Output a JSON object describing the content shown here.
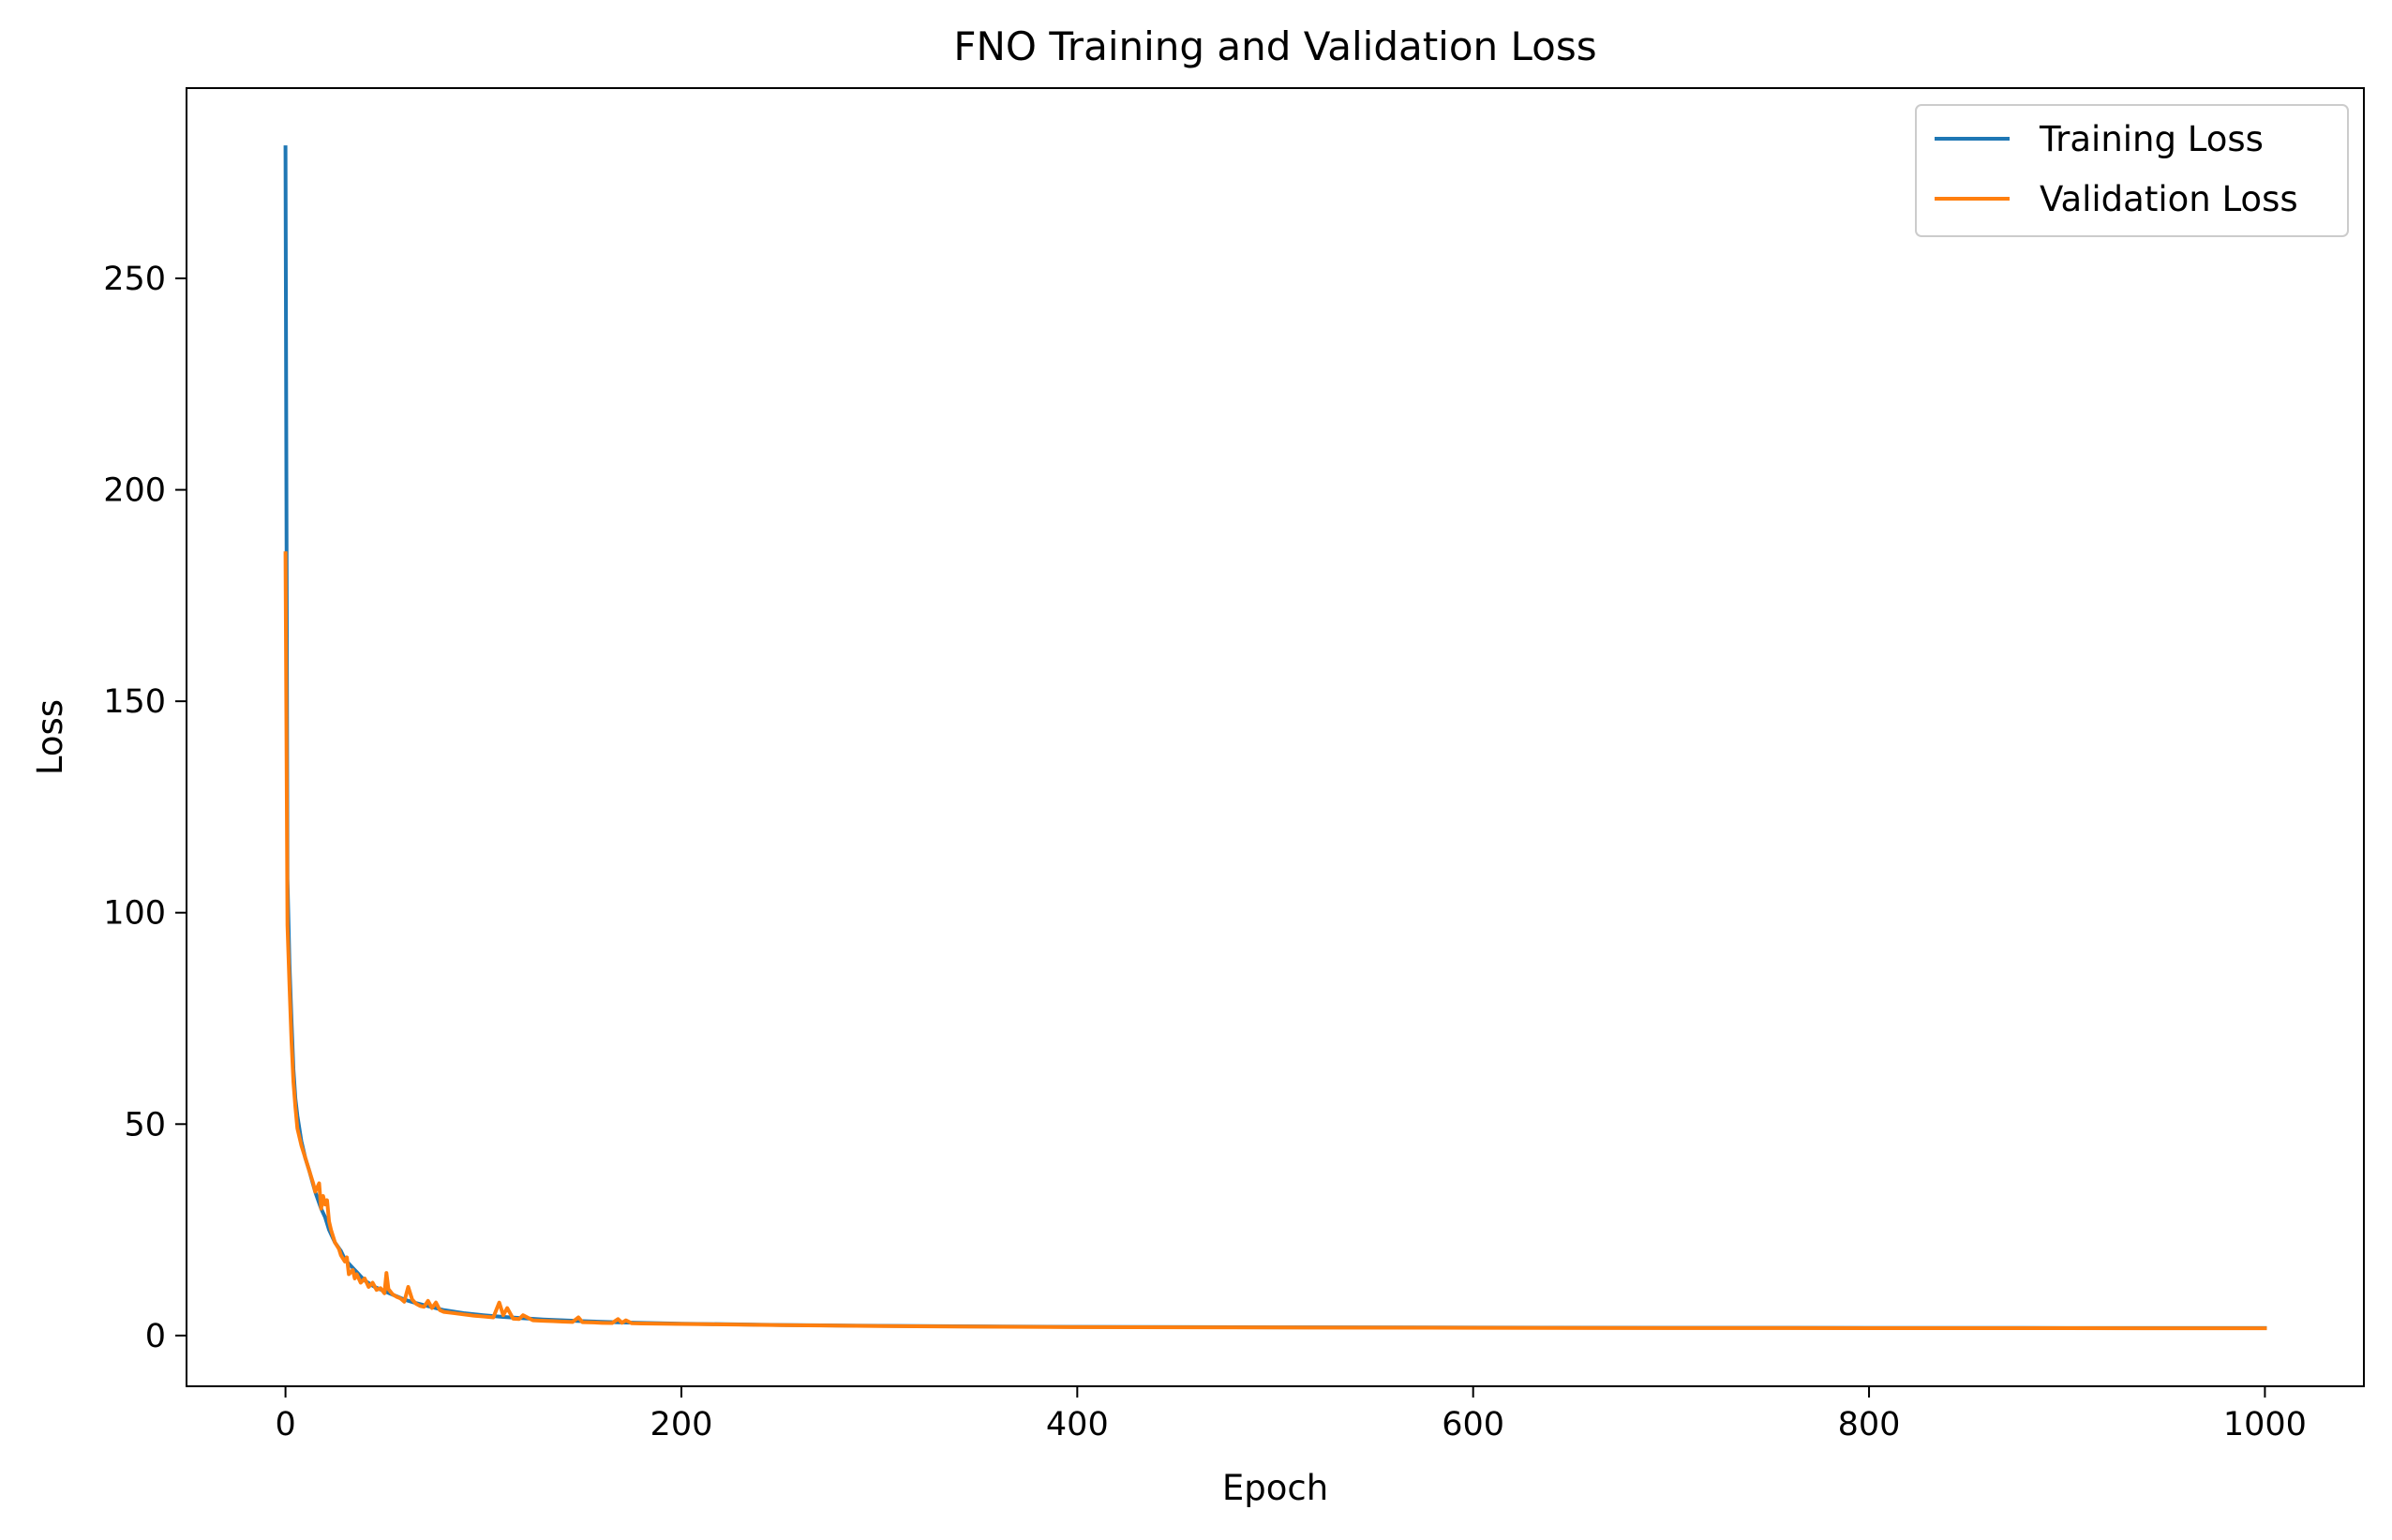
{
  "chart_data": {
    "type": "line",
    "title": "FNO Training and Validation Loss",
    "xlabel": "Epoch",
    "ylabel": "Loss",
    "xlim": [
      -50,
      1050
    ],
    "ylim": [
      -12,
      295
    ],
    "xticks": [
      0,
      200,
      400,
      600,
      800,
      1000
    ],
    "yticks": [
      0,
      50,
      100,
      150,
      200,
      250
    ],
    "xtick_labels": [
      "0",
      "200",
      "400",
      "600",
      "800",
      "1000"
    ],
    "ytick_labels": [
      "0",
      "50",
      "100",
      "150",
      "200",
      "250"
    ],
    "grid": false,
    "legend_position": "upper right",
    "series": [
      {
        "name": "Training Loss",
        "color": "#1f77b4",
        "x": [
          0,
          1,
          2,
          3,
          4,
          5,
          6,
          8,
          10,
          12,
          15,
          18,
          20,
          22,
          25,
          28,
          30,
          33,
          35,
          38,
          40,
          45,
          50,
          55,
          60,
          65,
          70,
          75,
          80,
          90,
          100,
          110,
          120,
          130,
          140,
          150,
          160,
          170,
          180,
          200,
          250,
          300,
          350,
          400,
          500,
          600,
          700,
          800,
          900,
          1000
        ],
        "y": [
          281,
          108,
          88,
          75,
          63,
          56,
          52,
          46,
          42,
          39,
          34,
          30,
          28,
          25,
          22,
          20,
          18,
          16.5,
          15.5,
          14,
          13,
          11.5,
          10.5,
          9.5,
          8.5,
          7.8,
          7.2,
          6.6,
          6.0,
          5.3,
          4.8,
          4.4,
          4.1,
          3.8,
          3.6,
          3.4,
          3.25,
          3.1,
          3.0,
          2.8,
          2.5,
          2.3,
          2.15,
          2.05,
          1.95,
          1.88,
          1.83,
          1.8,
          1.78,
          1.76
        ]
      },
      {
        "name": "Validation Loss",
        "color": "#ff7f0e",
        "x": [
          0,
          1,
          2,
          3,
          4,
          5,
          6,
          8,
          10,
          12,
          14,
          15,
          17,
          18,
          19,
          20,
          21,
          22,
          23,
          25,
          27,
          28,
          30,
          31,
          32,
          34,
          35,
          36,
          38,
          40,
          42,
          44,
          46,
          48,
          50,
          51,
          52,
          54,
          56,
          58,
          60,
          62,
          64,
          66,
          68,
          70,
          72,
          74,
          76,
          78,
          80,
          85,
          90,
          95,
          100,
          105,
          108,
          110,
          112,
          115,
          118,
          120,
          125,
          130,
          135,
          140,
          145,
          148,
          150,
          155,
          160,
          165,
          168,
          170,
          172,
          175,
          180,
          200,
          250,
          300,
          350,
          400,
          500,
          600,
          700,
          800,
          900,
          1000
        ],
        "y": [
          185,
          97,
          83,
          70,
          60,
          54,
          49,
          45,
          42,
          39,
          36,
          34,
          36,
          30,
          33,
          31,
          32,
          27,
          25,
          22,
          20.5,
          19,
          17.5,
          18.5,
          14.5,
          15.5,
          13.5,
          14.5,
          12.5,
          13.5,
          11.5,
          12.5,
          10.8,
          11.2,
          10.0,
          14.8,
          11.0,
          9.8,
          9.2,
          8.8,
          8.0,
          11.5,
          8.5,
          7.5,
          7.0,
          6.8,
          8.2,
          6.5,
          7.8,
          6.0,
          5.6,
          5.3,
          5.0,
          4.7,
          4.5,
          4.3,
          7.8,
          4.8,
          6.5,
          4.0,
          3.9,
          4.8,
          3.6,
          3.5,
          3.4,
          3.3,
          3.2,
          4.3,
          3.15,
          3.1,
          3.0,
          2.95,
          3.9,
          3.0,
          3.6,
          2.9,
          2.85,
          2.75,
          2.45,
          2.25,
          2.1,
          2.0,
          1.9,
          1.83,
          1.78,
          1.75,
          1.73,
          1.72
        ]
      }
    ]
  }
}
